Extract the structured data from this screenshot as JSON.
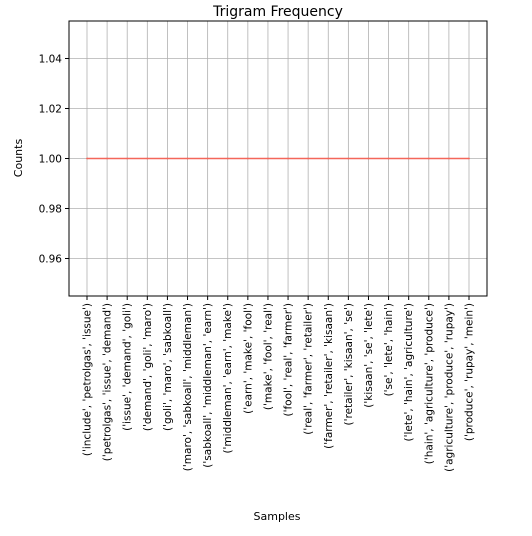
{
  "chart_data": {
    "type": "line",
    "title": "Trigram Frequency",
    "xlabel": "Samples",
    "ylabel": "Counts",
    "categories": [
      "('include', 'petrolgas', 'issue')",
      "('petrolgas', 'issue', 'demand')",
      "('issue', 'demand', 'goli')",
      "('demand', 'goli', 'maro')",
      "('goli', 'maro', 'sabkoall')",
      "('maro', 'sabkoall', 'middleman')",
      "('sabkoall', 'middleman', 'earn')",
      "('middleman', 'earn', 'make')",
      "('earn', 'make', 'fool')",
      "('make', 'fool', 'real')",
      "('fool', 'real', 'farmer')",
      "('real', 'farmer', 'retailer')",
      "('farmer', 'retailer', 'kisaan')",
      "('retailer', 'kisaan', 'se')",
      "('kisaan', 'se', 'lete')",
      "('se', 'lete', 'hain')",
      "('lete', 'hain', 'agriculture')",
      "('hain', 'agriculture', 'produce')",
      "('agriculture', 'produce', 'rupay')",
      "('produce', 'rupay', 'mein')"
    ],
    "series": [
      {
        "values": [
          1,
          1,
          1,
          1,
          1,
          1,
          1,
          1,
          1,
          1,
          1,
          1,
          1,
          1,
          1,
          1,
          1,
          1,
          1,
          1
        ]
      }
    ],
    "ylim": [
      0.945,
      1.055
    ],
    "yticks": [
      0.96,
      0.98,
      1.0,
      1.02,
      1.04
    ],
    "ytick_labels": [
      "0.96",
      "0.98",
      "1.00",
      "1.02",
      "1.04"
    ],
    "grid": true,
    "line_color": "#f4675a"
  }
}
